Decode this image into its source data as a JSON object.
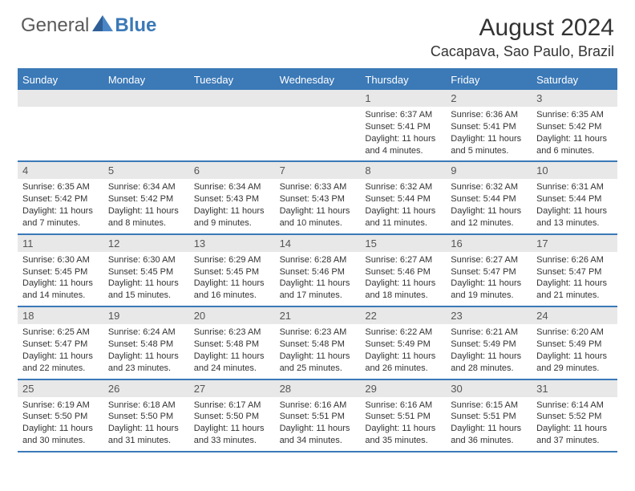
{
  "logo": {
    "general": "General",
    "blue": "Blue"
  },
  "title": "August 2024",
  "location": "Cacapava, Sao Paulo, Brazil",
  "colors": {
    "accent": "#3b79b7",
    "header_bg": "#3b79b7",
    "daynum_bg": "#e8e8e8",
    "text": "#333333",
    "logo_gray": "#5a5a5a"
  },
  "weekdays": [
    "Sunday",
    "Monday",
    "Tuesday",
    "Wednesday",
    "Thursday",
    "Friday",
    "Saturday"
  ],
  "weeks": [
    [
      null,
      null,
      null,
      null,
      {
        "n": "1",
        "sunrise": "Sunrise: 6:37 AM",
        "sunset": "Sunset: 5:41 PM",
        "daylight": "Daylight: 11 hours and 4 minutes."
      },
      {
        "n": "2",
        "sunrise": "Sunrise: 6:36 AM",
        "sunset": "Sunset: 5:41 PM",
        "daylight": "Daylight: 11 hours and 5 minutes."
      },
      {
        "n": "3",
        "sunrise": "Sunrise: 6:35 AM",
        "sunset": "Sunset: 5:42 PM",
        "daylight": "Daylight: 11 hours and 6 minutes."
      }
    ],
    [
      {
        "n": "4",
        "sunrise": "Sunrise: 6:35 AM",
        "sunset": "Sunset: 5:42 PM",
        "daylight": "Daylight: 11 hours and 7 minutes."
      },
      {
        "n": "5",
        "sunrise": "Sunrise: 6:34 AM",
        "sunset": "Sunset: 5:42 PM",
        "daylight": "Daylight: 11 hours and 8 minutes."
      },
      {
        "n": "6",
        "sunrise": "Sunrise: 6:34 AM",
        "sunset": "Sunset: 5:43 PM",
        "daylight": "Daylight: 11 hours and 9 minutes."
      },
      {
        "n": "7",
        "sunrise": "Sunrise: 6:33 AM",
        "sunset": "Sunset: 5:43 PM",
        "daylight": "Daylight: 11 hours and 10 minutes."
      },
      {
        "n": "8",
        "sunrise": "Sunrise: 6:32 AM",
        "sunset": "Sunset: 5:44 PM",
        "daylight": "Daylight: 11 hours and 11 minutes."
      },
      {
        "n": "9",
        "sunrise": "Sunrise: 6:32 AM",
        "sunset": "Sunset: 5:44 PM",
        "daylight": "Daylight: 11 hours and 12 minutes."
      },
      {
        "n": "10",
        "sunrise": "Sunrise: 6:31 AM",
        "sunset": "Sunset: 5:44 PM",
        "daylight": "Daylight: 11 hours and 13 minutes."
      }
    ],
    [
      {
        "n": "11",
        "sunrise": "Sunrise: 6:30 AM",
        "sunset": "Sunset: 5:45 PM",
        "daylight": "Daylight: 11 hours and 14 minutes."
      },
      {
        "n": "12",
        "sunrise": "Sunrise: 6:30 AM",
        "sunset": "Sunset: 5:45 PM",
        "daylight": "Daylight: 11 hours and 15 minutes."
      },
      {
        "n": "13",
        "sunrise": "Sunrise: 6:29 AM",
        "sunset": "Sunset: 5:45 PM",
        "daylight": "Daylight: 11 hours and 16 minutes."
      },
      {
        "n": "14",
        "sunrise": "Sunrise: 6:28 AM",
        "sunset": "Sunset: 5:46 PM",
        "daylight": "Daylight: 11 hours and 17 minutes."
      },
      {
        "n": "15",
        "sunrise": "Sunrise: 6:27 AM",
        "sunset": "Sunset: 5:46 PM",
        "daylight": "Daylight: 11 hours and 18 minutes."
      },
      {
        "n": "16",
        "sunrise": "Sunrise: 6:27 AM",
        "sunset": "Sunset: 5:47 PM",
        "daylight": "Daylight: 11 hours and 19 minutes."
      },
      {
        "n": "17",
        "sunrise": "Sunrise: 6:26 AM",
        "sunset": "Sunset: 5:47 PM",
        "daylight": "Daylight: 11 hours and 21 minutes."
      }
    ],
    [
      {
        "n": "18",
        "sunrise": "Sunrise: 6:25 AM",
        "sunset": "Sunset: 5:47 PM",
        "daylight": "Daylight: 11 hours and 22 minutes."
      },
      {
        "n": "19",
        "sunrise": "Sunrise: 6:24 AM",
        "sunset": "Sunset: 5:48 PM",
        "daylight": "Daylight: 11 hours and 23 minutes."
      },
      {
        "n": "20",
        "sunrise": "Sunrise: 6:23 AM",
        "sunset": "Sunset: 5:48 PM",
        "daylight": "Daylight: 11 hours and 24 minutes."
      },
      {
        "n": "21",
        "sunrise": "Sunrise: 6:23 AM",
        "sunset": "Sunset: 5:48 PM",
        "daylight": "Daylight: 11 hours and 25 minutes."
      },
      {
        "n": "22",
        "sunrise": "Sunrise: 6:22 AM",
        "sunset": "Sunset: 5:49 PM",
        "daylight": "Daylight: 11 hours and 26 minutes."
      },
      {
        "n": "23",
        "sunrise": "Sunrise: 6:21 AM",
        "sunset": "Sunset: 5:49 PM",
        "daylight": "Daylight: 11 hours and 28 minutes."
      },
      {
        "n": "24",
        "sunrise": "Sunrise: 6:20 AM",
        "sunset": "Sunset: 5:49 PM",
        "daylight": "Daylight: 11 hours and 29 minutes."
      }
    ],
    [
      {
        "n": "25",
        "sunrise": "Sunrise: 6:19 AM",
        "sunset": "Sunset: 5:50 PM",
        "daylight": "Daylight: 11 hours and 30 minutes."
      },
      {
        "n": "26",
        "sunrise": "Sunrise: 6:18 AM",
        "sunset": "Sunset: 5:50 PM",
        "daylight": "Daylight: 11 hours and 31 minutes."
      },
      {
        "n": "27",
        "sunrise": "Sunrise: 6:17 AM",
        "sunset": "Sunset: 5:50 PM",
        "daylight": "Daylight: 11 hours and 33 minutes."
      },
      {
        "n": "28",
        "sunrise": "Sunrise: 6:16 AM",
        "sunset": "Sunset: 5:51 PM",
        "daylight": "Daylight: 11 hours and 34 minutes."
      },
      {
        "n": "29",
        "sunrise": "Sunrise: 6:16 AM",
        "sunset": "Sunset: 5:51 PM",
        "daylight": "Daylight: 11 hours and 35 minutes."
      },
      {
        "n": "30",
        "sunrise": "Sunrise: 6:15 AM",
        "sunset": "Sunset: 5:51 PM",
        "daylight": "Daylight: 11 hours and 36 minutes."
      },
      {
        "n": "31",
        "sunrise": "Sunrise: 6:14 AM",
        "sunset": "Sunset: 5:52 PM",
        "daylight": "Daylight: 11 hours and 37 minutes."
      }
    ]
  ]
}
